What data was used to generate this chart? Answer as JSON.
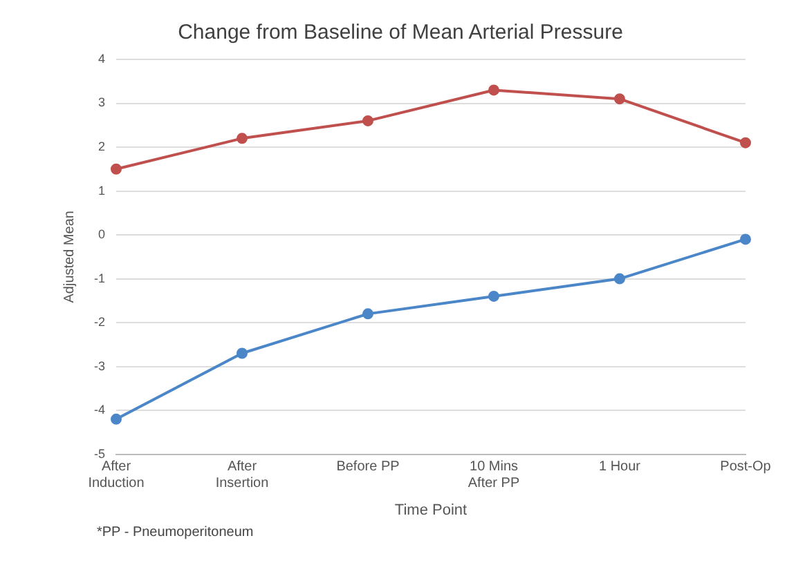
{
  "chart_data": {
    "type": "line",
    "title": "Change from Baseline of Mean Arterial Pressure",
    "xlabel": "Time Point",
    "ylabel": "Adjusted Mean",
    "categories": [
      "After Induction",
      "After Insertion",
      "Before PP",
      "10 Mins After PP",
      "1 Hour",
      "Post-Op"
    ],
    "series": [
      {
        "color": "#4a86c8",
        "values": [
          -4.2,
          -2.7,
          -1.8,
          -1.4,
          -1.0,
          -0.1
        ]
      },
      {
        "color": "#c0504d",
        "values": [
          1.5,
          2.2,
          2.6,
          3.3,
          3.1,
          2.1
        ]
      }
    ],
    "ylim": [
      -5,
      4
    ],
    "yticks": [
      -5,
      -4,
      -3,
      -2,
      -1,
      0,
      1,
      2,
      3,
      4
    ],
    "grid": "y",
    "marker": "circle",
    "line_style": "solid",
    "legend": false,
    "annotations": [
      "*PP - Pneumoperitoneum"
    ]
  }
}
